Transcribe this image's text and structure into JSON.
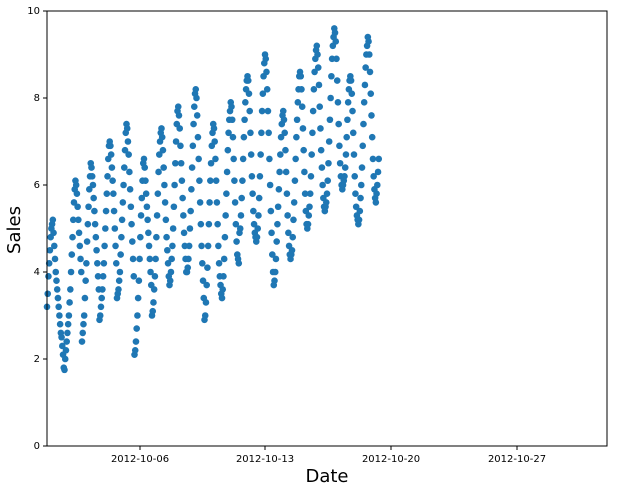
{
  "chart_data": {
    "type": "scatter",
    "title": "",
    "xlabel": "Date",
    "ylabel": "Sales",
    "x_range": [
      "2012-09-30",
      "2012-11-01"
    ],
    "ylim": [
      0,
      10
    ],
    "y_ticks": [
      0,
      2,
      4,
      6,
      8,
      10
    ],
    "x_ticks": [
      "2012-10-06",
      "2012-10-13",
      "2012-10-20",
      "2012-10-27"
    ],
    "grid": false,
    "legend": "none",
    "marker_color": "#1f77b4",
    "sampling": "hourly",
    "series": [
      {
        "values": [
          3.2,
          3.5,
          3.9,
          4.2,
          4.5,
          4.8,
          5.0,
          5.1,
          5.2,
          4.9,
          4.6,
          4.3,
          4.0,
          3.8,
          3.6,
          3.4,
          3.2,
          3.0,
          2.8,
          2.6,
          2.5,
          2.3,
          2.1,
          1.8,
          1.75,
          2.0,
          2.2,
          2.4,
          2.6,
          2.8,
          3.0,
          3.3,
          3.6,
          4.0,
          4.4,
          4.8,
          5.2,
          5.6,
          5.9,
          6.1,
          6.0,
          5.8,
          5.5,
          5.2,
          4.9,
          4.6,
          4.3,
          4.0,
          2.4,
          2.6,
          2.8,
          3.0,
          3.4,
          3.8,
          4.2,
          4.7,
          5.1,
          5.5,
          5.9,
          6.2,
          6.5,
          6.4,
          6.2,
          6.0,
          5.7,
          5.4,
          5.1,
          4.8,
          4.5,
          4.2,
          3.9,
          3.6,
          2.9,
          3.0,
          3.2,
          3.4,
          3.6,
          3.9,
          4.2,
          4.6,
          5.0,
          5.4,
          5.8,
          6.2,
          6.6,
          6.9,
          7.0,
          6.9,
          6.7,
          6.4,
          6.1,
          5.8,
          5.4,
          5.0,
          4.6,
          4.2,
          3.4,
          3.5,
          3.6,
          3.8,
          4.0,
          4.4,
          4.8,
          5.2,
          5.6,
          6.0,
          6.4,
          6.8,
          7.2,
          7.4,
          7.3,
          7.0,
          6.7,
          6.3,
          5.9,
          5.5,
          5.1,
          4.7,
          4.3,
          3.9,
          2.1,
          2.2,
          2.4,
          2.7,
          3.0,
          3.4,
          3.8,
          4.3,
          4.8,
          5.3,
          5.7,
          6.1,
          6.5,
          6.6,
          6.4,
          6.1,
          5.8,
          5.5,
          5.2,
          4.9,
          4.6,
          4.3,
          4.0,
          3.7,
          3.0,
          3.1,
          3.3,
          3.6,
          3.9,
          4.3,
          4.8,
          5.3,
          5.8,
          6.3,
          6.7,
          7.0,
          7.2,
          7.3,
          7.1,
          6.8,
          6.4,
          6.0,
          5.6,
          5.2,
          4.8,
          4.5,
          4.2,
          3.9,
          3.7,
          3.8,
          4.0,
          4.3,
          4.6,
          5.0,
          5.5,
          6.0,
          6.5,
          7.0,
          7.4,
          7.7,
          7.8,
          7.6,
          7.3,
          6.9,
          6.5,
          6.1,
          5.7,
          5.3,
          4.9,
          4.6,
          4.3,
          4.0,
          4.0,
          4.1,
          4.3,
          4.6,
          5.0,
          5.4,
          5.9,
          6.4,
          6.9,
          7.4,
          7.8,
          8.1,
          8.2,
          8.0,
          7.6,
          7.1,
          6.6,
          6.1,
          5.6,
          5.1,
          4.6,
          4.2,
          3.8,
          3.4,
          2.9,
          3.0,
          3.3,
          3.7,
          4.1,
          4.6,
          5.1,
          5.6,
          6.1,
          6.5,
          6.9,
          7.2,
          7.4,
          7.3,
          7.0,
          6.6,
          6.1,
          5.6,
          5.1,
          4.6,
          4.2,
          3.9,
          3.7,
          3.5,
          3.4,
          3.6,
          3.9,
          4.3,
          4.8,
          5.3,
          5.8,
          6.3,
          6.8,
          7.2,
          7.5,
          7.7,
          7.9,
          7.8,
          7.5,
          7.1,
          6.6,
          6.1,
          5.6,
          5.1,
          4.7,
          4.4,
          4.3,
          4.2,
          4.9,
          5.0,
          5.3,
          5.7,
          6.1,
          6.6,
          7.1,
          7.5,
          7.9,
          8.2,
          8.4,
          8.5,
          8.4,
          8.1,
          7.7,
          7.2,
          6.7,
          6.2,
          5.8,
          5.4,
          5.1,
          4.9,
          4.8,
          4.7,
          4.8,
          5.0,
          5.3,
          5.7,
          6.2,
          6.7,
          7.2,
          7.7,
          8.1,
          8.5,
          8.8,
          9.0,
          8.9,
          8.6,
          8.2,
          7.7,
          7.2,
          6.6,
          6.0,
          5.4,
          4.9,
          4.4,
          4.0,
          3.7,
          3.8,
          4.0,
          4.3,
          4.7,
          5.1,
          5.5,
          5.9,
          6.3,
          6.7,
          7.1,
          7.4,
          7.6,
          7.7,
          7.5,
          7.2,
          6.8,
          6.3,
          5.8,
          5.3,
          4.9,
          4.6,
          4.4,
          4.3,
          4.4,
          4.5,
          4.8,
          5.2,
          5.6,
          6.1,
          6.6,
          7.1,
          7.5,
          7.9,
          8.2,
          8.5,
          8.6,
          8.5,
          8.2,
          7.8,
          7.3,
          6.8,
          6.3,
          5.8,
          5.4,
          5.1,
          5.0,
          5.1,
          5.3,
          5.5,
          5.8,
          6.2,
          6.7,
          7.2,
          7.7,
          8.2,
          8.6,
          8.9,
          9.1,
          9.2,
          9.0,
          8.7,
          8.3,
          7.8,
          7.3,
          6.8,
          6.4,
          6.0,
          5.7,
          5.5,
          5.4,
          5.5,
          5.6,
          5.8,
          6.1,
          6.5,
          7.0,
          7.5,
          8.0,
          8.5,
          8.9,
          9.2,
          9.4,
          9.6,
          9.5,
          9.3,
          8.9,
          8.4,
          7.9,
          7.4,
          6.9,
          6.5,
          6.2,
          6.0,
          5.9,
          6.0,
          6.1,
          6.2,
          6.4,
          6.7,
          7.1,
          7.5,
          7.9,
          8.2,
          8.4,
          8.5,
          8.4,
          8.1,
          7.7,
          7.2,
          6.7,
          6.2,
          5.8,
          5.5,
          5.3,
          5.2,
          5.1,
          5.2,
          5.4,
          5.7,
          6.0,
          6.4,
          6.9,
          7.4,
          7.9,
          8.3,
          8.7,
          9.0,
          9.2,
          9.4,
          9.3,
          9.0,
          8.6,
          8.1,
          7.6,
          7.1,
          6.6,
          6.2,
          5.9,
          5.7,
          5.6,
          5.8,
          6.0,
          6.3,
          6.6
        ]
      }
    ]
  }
}
